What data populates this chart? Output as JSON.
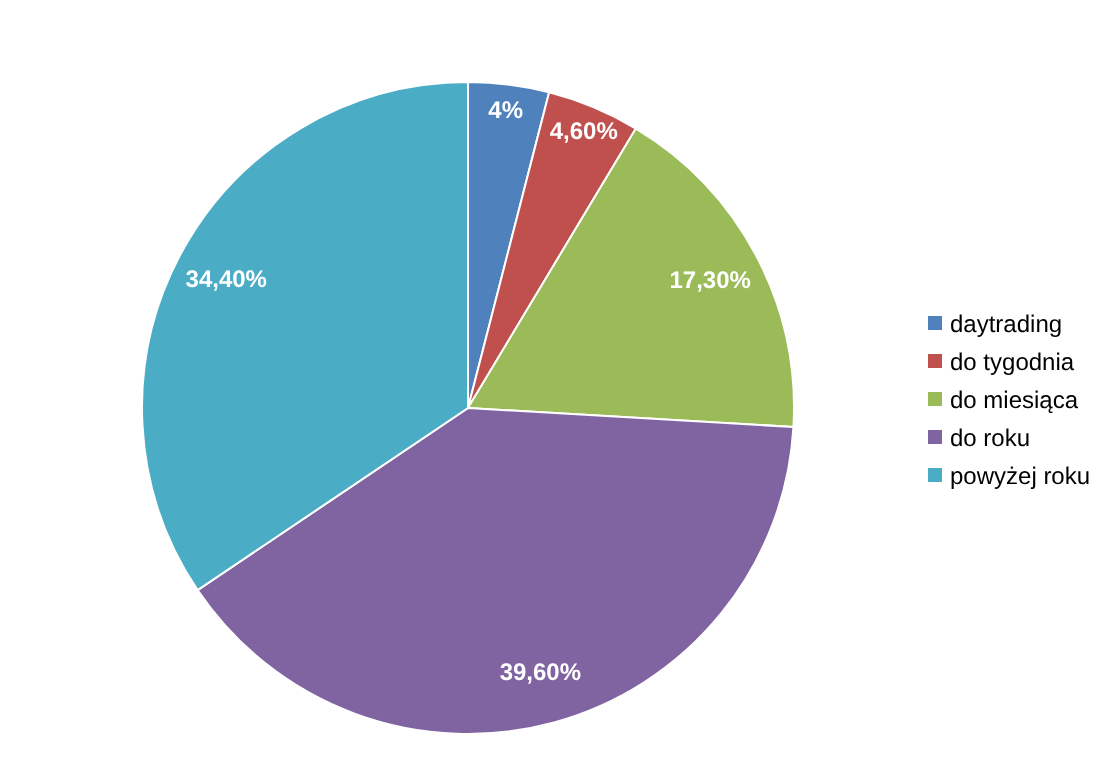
{
  "chart_data": {
    "type": "pie",
    "categories": [
      "daytrading",
      "do tygodnia",
      "do miesiąca",
      "do roku",
      "powyżej roku"
    ],
    "values": [
      4,
      4.6,
      17.3,
      39.6,
      34.4
    ],
    "colors": [
      "#4f81bd",
      "#c0504d",
      "#9bbb59",
      "#8064a2",
      "#4bacc6"
    ],
    "value_labels": [
      "4%",
      "4,60%",
      "17,30%",
      "39,60%",
      "34,40%"
    ],
    "legend": "right"
  }
}
